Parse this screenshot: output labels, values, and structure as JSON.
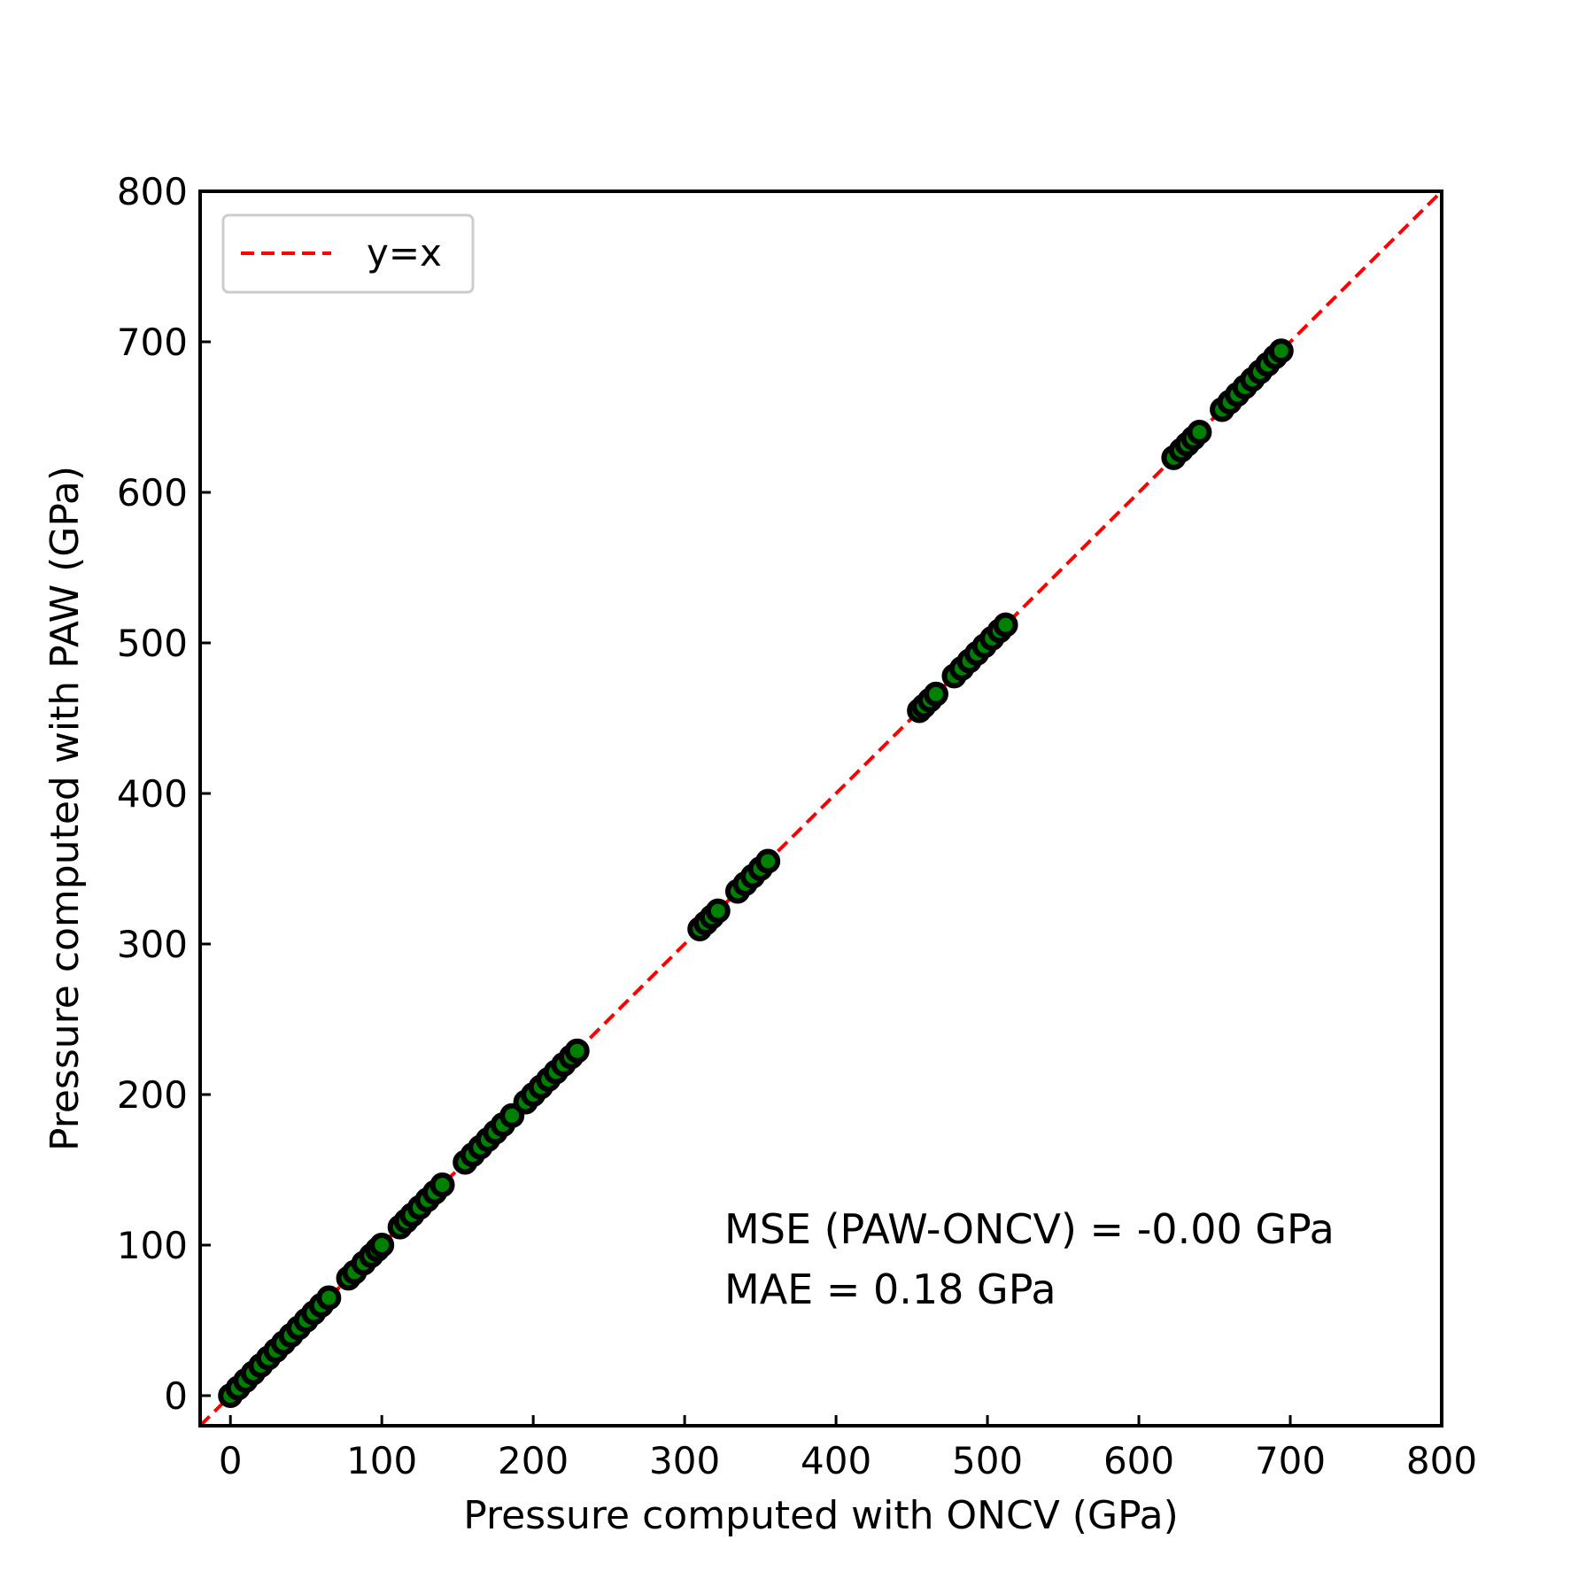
{
  "chart_data": {
    "type": "scatter",
    "title": "",
    "xlabel": "Pressure computed with ONCV (GPa)",
    "ylabel": "Pressure computed with PAW (GPa)",
    "xlim": [
      -20,
      800
    ],
    "ylim": [
      -20,
      800
    ],
    "xticks": [
      0,
      100,
      200,
      300,
      400,
      500,
      600,
      700,
      800
    ],
    "yticks": [
      0,
      100,
      200,
      300,
      400,
      500,
      600,
      700,
      800
    ],
    "xtick_labels": [
      "0",
      "100",
      "200",
      "300",
      "400",
      "500",
      "600",
      "700",
      "800"
    ],
    "ytick_labels": [
      "0",
      "100",
      "200",
      "300",
      "400",
      "500",
      "600",
      "700",
      "800"
    ],
    "grid": false,
    "legend": {
      "placement": "top-left",
      "entries": [
        "y=x"
      ]
    },
    "reference_line": {
      "label": "y=x",
      "color": "#ff0000",
      "style": "dashed"
    },
    "marker": {
      "fill": "#008000",
      "edge": "#000000"
    },
    "annotations": [
      "MSE (PAW-ONCV) = -0.00 GPa",
      "MAE = 0.18 GPa"
    ],
    "series": [
      {
        "points": [
          [
            0,
            0
          ],
          [
            5,
            5
          ],
          [
            10,
            10
          ],
          [
            15,
            15
          ],
          [
            20,
            20
          ],
          [
            25,
            25
          ],
          [
            30,
            30
          ],
          [
            35,
            35
          ],
          [
            40,
            40
          ],
          [
            45,
            45
          ],
          [
            50,
            50
          ],
          [
            55,
            55
          ],
          [
            60,
            60
          ],
          [
            65,
            65
          ],
          [
            78,
            78
          ],
          [
            82,
            82
          ],
          [
            88,
            88
          ],
          [
            93,
            93
          ],
          [
            97,
            97
          ],
          [
            100,
            100
          ],
          [
            112,
            112
          ],
          [
            116,
            116
          ],
          [
            120,
            120
          ],
          [
            125,
            125
          ],
          [
            130,
            130
          ],
          [
            135,
            135
          ],
          [
            140,
            140
          ],
          [
            155,
            155
          ],
          [
            160,
            160
          ],
          [
            165,
            165
          ],
          [
            170,
            170
          ],
          [
            175,
            175
          ],
          [
            180,
            180
          ],
          [
            186,
            186
          ],
          [
            195,
            195
          ],
          [
            200,
            200
          ],
          [
            205,
            205
          ],
          [
            210,
            210
          ],
          [
            215,
            215
          ],
          [
            220,
            220
          ],
          [
            225,
            225
          ],
          [
            229,
            229
          ],
          [
            310,
            310
          ],
          [
            314,
            314
          ],
          [
            318,
            318
          ],
          [
            322,
            322
          ],
          [
            335,
            335
          ],
          [
            340,
            340
          ],
          [
            345,
            345
          ],
          [
            350,
            350
          ],
          [
            355,
            355
          ],
          [
            455,
            455
          ],
          [
            458,
            458
          ],
          [
            462,
            462
          ],
          [
            466,
            466
          ],
          [
            478,
            478
          ],
          [
            483,
            483
          ],
          [
            488,
            488
          ],
          [
            493,
            493
          ],
          [
            498,
            498
          ],
          [
            503,
            503
          ],
          [
            508,
            508
          ],
          [
            512,
            512
          ],
          [
            623,
            623
          ],
          [
            628,
            628
          ],
          [
            632,
            632
          ],
          [
            636,
            636
          ],
          [
            640,
            640
          ],
          [
            655,
            655
          ],
          [
            660,
            660
          ],
          [
            665,
            665
          ],
          [
            670,
            670
          ],
          [
            675,
            675
          ],
          [
            680,
            680
          ],
          [
            685,
            685
          ],
          [
            690,
            690
          ],
          [
            694,
            694
          ]
        ]
      }
    ]
  }
}
